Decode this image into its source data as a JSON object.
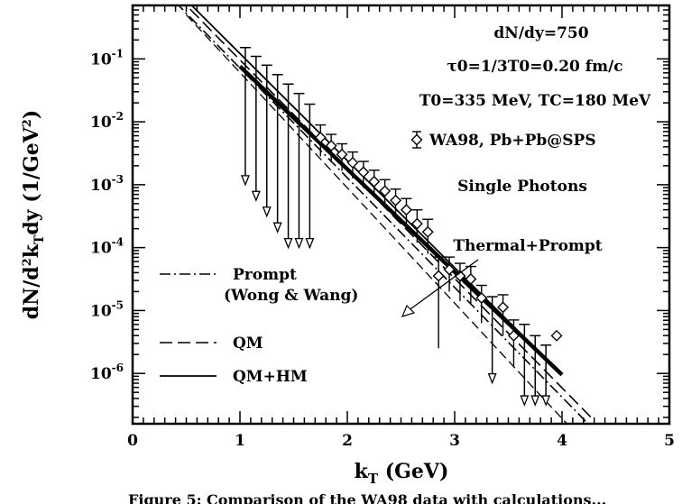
{
  "chart_data": {
    "type": "scatter",
    "xlabel": "kT (GeV)",
    "xlabel_main": "k",
    "xlabel_sub": "T",
    "xlabel_unit": "(GeV)",
    "ylabel": "dN/d²kTdy (1/GeV²)",
    "xlim": [
      0,
      5
    ],
    "ylim_log10": [
      -6.8,
      -0.15
    ],
    "y_scale": "log",
    "x_ticks": [
      "0",
      "1",
      "2",
      "3",
      "4",
      "5"
    ],
    "y_ticks": [
      {
        "exp": "-1",
        "label": "10-1"
      },
      {
        "exp": "-2",
        "label": "10-2"
      },
      {
        "exp": "-3",
        "label": "10-3"
      },
      {
        "exp": "-4",
        "label": "10-4"
      },
      {
        "exp": "-5",
        "label": "10-5"
      },
      {
        "exp": "-6",
        "label": "10-6"
      }
    ],
    "annotations": {
      "dndy": "dN/dy=750",
      "tau": "τ0=1/3T0=0.20 fm/c",
      "temps": "T0=335 MeV, TC=180 MeV",
      "data_label": "WA98, Pb+Pb@SPS",
      "single": "Single Photons",
      "thermal_prompt": "Thermal+Prompt"
    },
    "legend": [
      {
        "name": "Prompt",
        "sub": "(Wong & Wang)",
        "style": "dash-dot"
      },
      {
        "name": "QM",
        "style": "dashed"
      },
      {
        "name": "QM+HM",
        "style": "solid"
      }
    ],
    "series": [
      {
        "name": "Prompt",
        "style": "dash-dot",
        "x": [
          0.4,
          4.3
        ],
        "log10y": [
          -0.1,
          -6.9
        ]
      },
      {
        "name": "QM",
        "style": "dashed",
        "x": [
          0.3,
          4.3
        ],
        "log10y": [
          0.2,
          -6.75
        ]
      },
      {
        "name": "QM",
        "style": "dashed-thin",
        "x": [
          0.5,
          4.1
        ],
        "log10y": [
          -0.3,
          -6.9
        ]
      },
      {
        "name": "QM+HM",
        "style": "solid",
        "x": [
          0.55,
          4.0
        ],
        "log10y": [
          -0.15,
          -6.02
        ]
      },
      {
        "name": "Thermal+Prompt",
        "style": "solid-thick",
        "x": [
          1.0,
          4.0
        ],
        "log10y": [
          -1.12,
          -6.02
        ]
      }
    ],
    "upper_limits": [
      {
        "x": 1.05,
        "log10y_top": -0.82,
        "log10y_bottom": -3.0
      },
      {
        "x": 1.15,
        "log10y_top": -0.96,
        "log10y_bottom": -3.25
      },
      {
        "x": 1.25,
        "log10y_top": -1.1,
        "log10y_bottom": -3.5
      },
      {
        "x": 1.35,
        "log10y_top": -1.25,
        "log10y_bottom": -3.75
      },
      {
        "x": 1.45,
        "log10y_top": -1.4,
        "log10y_bottom": -4.0
      },
      {
        "x": 1.55,
        "log10y_top": -1.55,
        "log10y_bottom": -4.0
      },
      {
        "x": 1.65,
        "log10y_top": -1.72,
        "log10y_bottom": -4.0
      },
      {
        "x": 3.35,
        "log10y_top": -4.78,
        "log10y_bottom": -6.15
      },
      {
        "x": 3.65,
        "log10y_top": -5.22,
        "log10y_bottom": -6.5
      },
      {
        "x": 3.75,
        "log10y_top": -5.4,
        "log10y_bottom": -6.5
      },
      {
        "x": 3.85,
        "log10y_top": -5.55,
        "log10y_bottom": -6.5
      }
    ],
    "data_points": [
      {
        "x": 1.75,
        "log10y": -2.25,
        "err_up": -2.05,
        "err_down": -2.55
      },
      {
        "x": 1.85,
        "log10y": -2.38,
        "err_up": -2.2,
        "err_down": -2.65
      },
      {
        "x": 1.95,
        "log10y": -2.52,
        "err_up": -2.35,
        "err_down": -2.78
      },
      {
        "x": 2.05,
        "log10y": -2.65,
        "err_up": -2.48,
        "err_down": -2.9
      },
      {
        "x": 2.15,
        "log10y": -2.8,
        "err_up": -2.63,
        "err_down": -3.05
      },
      {
        "x": 2.25,
        "log10y": -2.95,
        "err_up": -2.77,
        "err_down": -3.2
      },
      {
        "x": 2.35,
        "log10y": -3.1,
        "err_up": -2.92,
        "err_down": -3.35
      },
      {
        "x": 2.45,
        "log10y": -3.25,
        "err_up": -3.07,
        "err_down": -3.5
      },
      {
        "x": 2.55,
        "log10y": -3.4,
        "err_up": -3.22,
        "err_down": -3.68
      },
      {
        "x": 2.65,
        "log10y": -3.62,
        "err_up": -3.4,
        "err_down": -3.92
      },
      {
        "x": 2.75,
        "log10y": -3.75,
        "err_up": -3.55,
        "err_down": -4.1
      },
      {
        "x": 2.85,
        "log10y": -4.45,
        "err_up": -4.15,
        "err_down": -5.6
      },
      {
        "x": 2.95,
        "log10y": -4.35,
        "err_up": -4.15,
        "err_down": -4.7
      },
      {
        "x": 3.05,
        "log10y": -4.45,
        "err_up": -4.25,
        "err_down": -4.85
      },
      {
        "x": 3.15,
        "log10y": -4.5,
        "err_up": -4.3,
        "err_down": -4.9
      },
      {
        "x": 3.25,
        "log10y": -4.8,
        "err_up": -4.6,
        "err_down": -5.2
      },
      {
        "x": 3.45,
        "log10y": -4.95,
        "err_up": -4.75,
        "err_down": -5.4
      },
      {
        "x": 3.55,
        "log10y": -5.4,
        "err_up": -5.15,
        "err_down": -5.9
      },
      {
        "x": 3.95,
        "log10y": -5.4,
        "err_up": null,
        "err_down": null
      }
    ]
  },
  "caption": "Figure 5: Comparison of the WA98 data with calculations..."
}
